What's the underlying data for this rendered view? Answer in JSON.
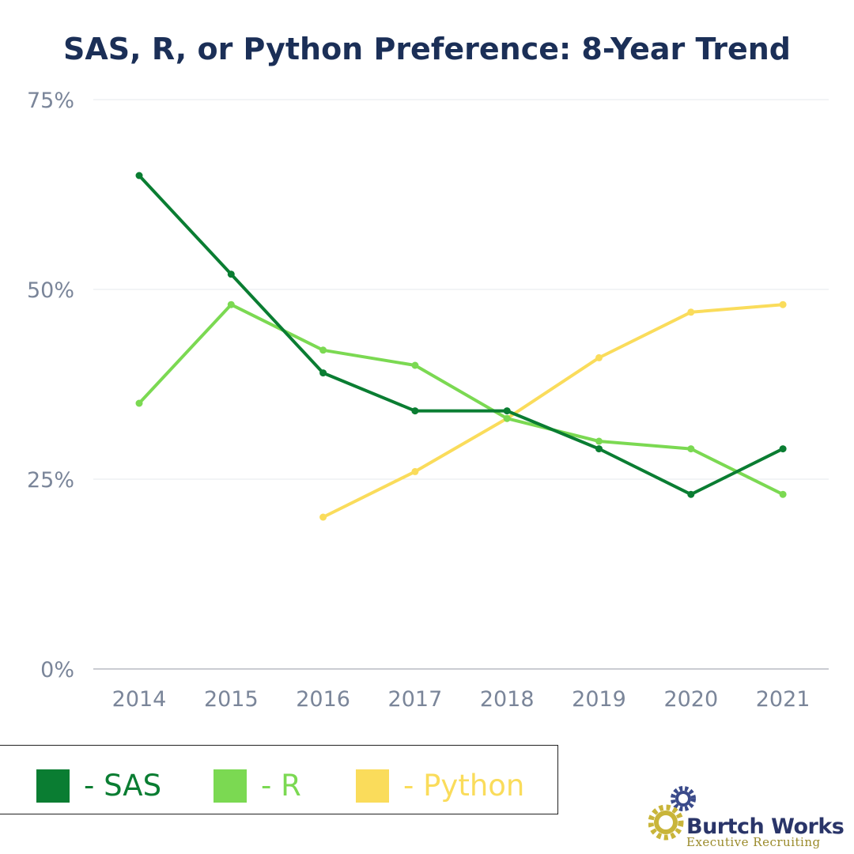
{
  "chart_data": {
    "type": "line",
    "title": "SAS, R, or Python Preference: 8-Year Trend",
    "x": [
      "2014",
      "2015",
      "2016",
      "2017",
      "2018",
      "2019",
      "2020",
      "2021"
    ],
    "ylim": [
      0,
      75
    ],
    "yticks": [
      0,
      25,
      50,
      75
    ],
    "ytick_labels": [
      "0%",
      "25%",
      "50%",
      "75%"
    ],
    "grid": true,
    "legend_position": "bottom-left",
    "series": [
      {
        "name": "SAS",
        "legend_label": "- SAS",
        "color": "#0a7d32",
        "values": [
          65,
          52,
          39,
          34,
          34,
          29,
          23,
          29
        ]
      },
      {
        "name": "R",
        "legend_label": "- R",
        "color": "#7bd952",
        "values": [
          35,
          48,
          42,
          40,
          33,
          30,
          29,
          23
        ]
      },
      {
        "name": "Python",
        "legend_label": "- Python",
        "color": "#fadc5b",
        "values": [
          null,
          null,
          20,
          26,
          33,
          41,
          47,
          48
        ]
      }
    ]
  },
  "logo": {
    "name": "Burtch Works",
    "tagline": "Executive Recruiting",
    "primary_color": "#2a3569",
    "accent_color": "#c9b53a"
  }
}
